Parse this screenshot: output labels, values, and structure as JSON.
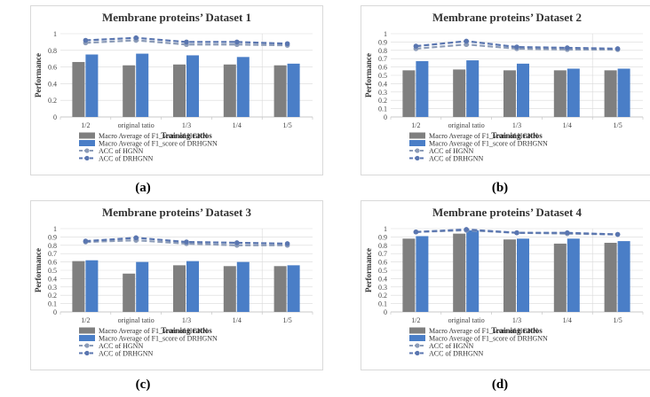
{
  "colors": {
    "hgnn": "#7f7f7f",
    "drhgnn": "#4a7ec7",
    "acc_hgnn": "#8c9cb8",
    "acc_drhgnn": "#5a76b0",
    "frame": "#d9d9d9",
    "grid": "#d9d9d9"
  },
  "legend_labels": [
    "Macro Average of F1_score of HGNN",
    "Macro Average of F1_score of DRHGNN",
    "ACC of HGNN",
    "ACC of DRHGNN"
  ],
  "chart_data": [
    {
      "type": "bar+line",
      "title": "Membrane proteins’ Dataset 1",
      "caption": "(a)",
      "xlabel": "Training ratios",
      "ylabel": "Performance",
      "ylim": [
        0,
        1
      ],
      "yticks": [
        "0",
        "0.2",
        "0.4",
        "0.6",
        "0.8",
        "1"
      ],
      "categories": [
        "1/2",
        "original tatio",
        "1/3",
        "1/4",
        "1/5"
      ],
      "series": [
        {
          "name": "Macro Average of F1_score of HGNN",
          "kind": "bar",
          "values": [
            0.66,
            0.62,
            0.63,
            0.63,
            0.62
          ]
        },
        {
          "name": "Macro Average of F1_score of DRHGNN",
          "kind": "bar",
          "values": [
            0.75,
            0.76,
            0.74,
            0.72,
            0.64
          ]
        },
        {
          "name": "ACC of HGNN",
          "kind": "line",
          "values": [
            0.89,
            0.92,
            0.87,
            0.87,
            0.86
          ]
        },
        {
          "name": "ACC of DRHGNN",
          "kind": "line",
          "values": [
            0.92,
            0.95,
            0.9,
            0.9,
            0.88
          ]
        }
      ]
    },
    {
      "type": "bar+line",
      "title": "Membrane proteins’ Dataset 2",
      "caption": "(b)",
      "xlabel": "Training ratios",
      "ylabel": "Performance",
      "ylim": [
        0,
        1
      ],
      "yticks": [
        "0",
        "0.1",
        "0.2",
        "0.3",
        "0.4",
        "0.5",
        "0.6",
        "0.7",
        "0.8",
        "0.9",
        "1"
      ],
      "categories": [
        "1/2",
        "original tatio",
        "1/3",
        "1/4",
        "1/5"
      ],
      "series": [
        {
          "name": "Macro Average of F1_score of HGNN",
          "kind": "bar",
          "values": [
            0.56,
            0.57,
            0.56,
            0.56,
            0.56
          ]
        },
        {
          "name": "Macro Average of F1_score of DRHGNN",
          "kind": "bar",
          "values": [
            0.67,
            0.68,
            0.64,
            0.58,
            0.58
          ]
        },
        {
          "name": "ACC of HGNN",
          "kind": "line",
          "values": [
            0.82,
            0.87,
            0.82,
            0.81,
            0.81
          ]
        },
        {
          "name": "ACC of DRHGNN",
          "kind": "line",
          "values": [
            0.85,
            0.91,
            0.84,
            0.83,
            0.82
          ]
        }
      ]
    },
    {
      "type": "bar+line",
      "title": "Membrane proteins’ Dataset 3",
      "caption": "(c)",
      "xlabel": "Training ratios",
      "ylabel": "Performance",
      "ylim": [
        0,
        1
      ],
      "yticks": [
        "0",
        "0.1",
        "0.2",
        "0.3",
        "0.4",
        "0.5",
        "0.6",
        "0.7",
        "0.8",
        "0.9",
        "1"
      ],
      "categories": [
        "1/2",
        "original tatio",
        "1/3",
        "1/4",
        "1/5"
      ],
      "series": [
        {
          "name": "Macro Average of F1_score of HGNN",
          "kind": "bar",
          "values": [
            0.61,
            0.46,
            0.56,
            0.55,
            0.55
          ]
        },
        {
          "name": "Macro Average of F1_score of DRHGNN",
          "kind": "bar",
          "values": [
            0.62,
            0.6,
            0.61,
            0.6,
            0.56
          ]
        },
        {
          "name": "ACC of HGNN",
          "kind": "line",
          "values": [
            0.84,
            0.86,
            0.82,
            0.8,
            0.8
          ]
        },
        {
          "name": "ACC of DRHGNN",
          "kind": "line",
          "values": [
            0.85,
            0.89,
            0.84,
            0.83,
            0.82
          ]
        }
      ]
    },
    {
      "type": "bar+line",
      "title": "Membrane proteins’ Dataset 4",
      "caption": "(d)",
      "xlabel": "Training ratios",
      "ylabel": "Performance",
      "ylim": [
        0,
        1
      ],
      "yticks": [
        "0",
        "0.1",
        "0.2",
        "0.3",
        "0.4",
        "0.5",
        "0.6",
        "0.7",
        "0.8",
        "0.9",
        "1"
      ],
      "categories": [
        "1/2",
        "original tatio",
        "1/3",
        "1/4",
        "1/5"
      ],
      "series": [
        {
          "name": "Macro Average of F1_score of HGNN",
          "kind": "bar",
          "values": [
            0.88,
            0.94,
            0.87,
            0.82,
            0.83
          ]
        },
        {
          "name": "Macro Average of F1_score of DRHGNN",
          "kind": "bar",
          "values": [
            0.91,
            0.98,
            0.88,
            0.88,
            0.85
          ]
        },
        {
          "name": "ACC of HGNN",
          "kind": "line",
          "values": [
            0.96,
            0.98,
            0.95,
            0.94,
            0.93
          ]
        },
        {
          "name": "ACC of DRHGNN",
          "kind": "line",
          "values": [
            0.96,
            0.99,
            0.95,
            0.95,
            0.93
          ]
        }
      ]
    }
  ]
}
